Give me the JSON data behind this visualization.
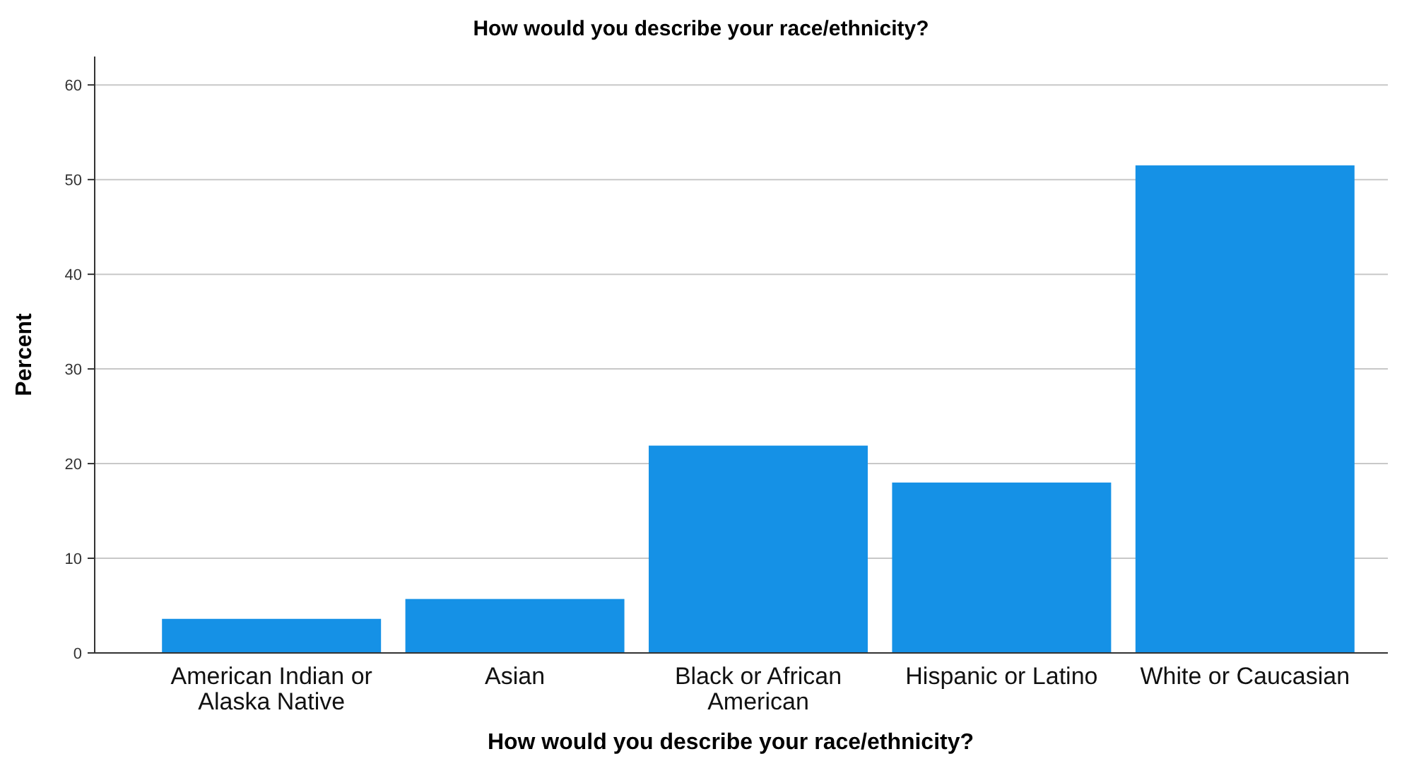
{
  "chart_data": {
    "type": "bar",
    "title": "How would you describe your race/ethnicity?",
    "xlabel": "How would you describe your race/ethnicity?",
    "ylabel": "Percent",
    "categories": [
      "American Indian or Alaska Native",
      "Asian",
      "Black or African American",
      "Hispanic or Latino",
      "White or Caucasian"
    ],
    "values": [
      3.6,
      5.7,
      21.9,
      18.0,
      51.5
    ],
    "color": "#1591e6",
    "ylim": [
      0,
      63
    ],
    "yticks": [
      0,
      10,
      20,
      30,
      40,
      50,
      60
    ],
    "grid": "y"
  }
}
